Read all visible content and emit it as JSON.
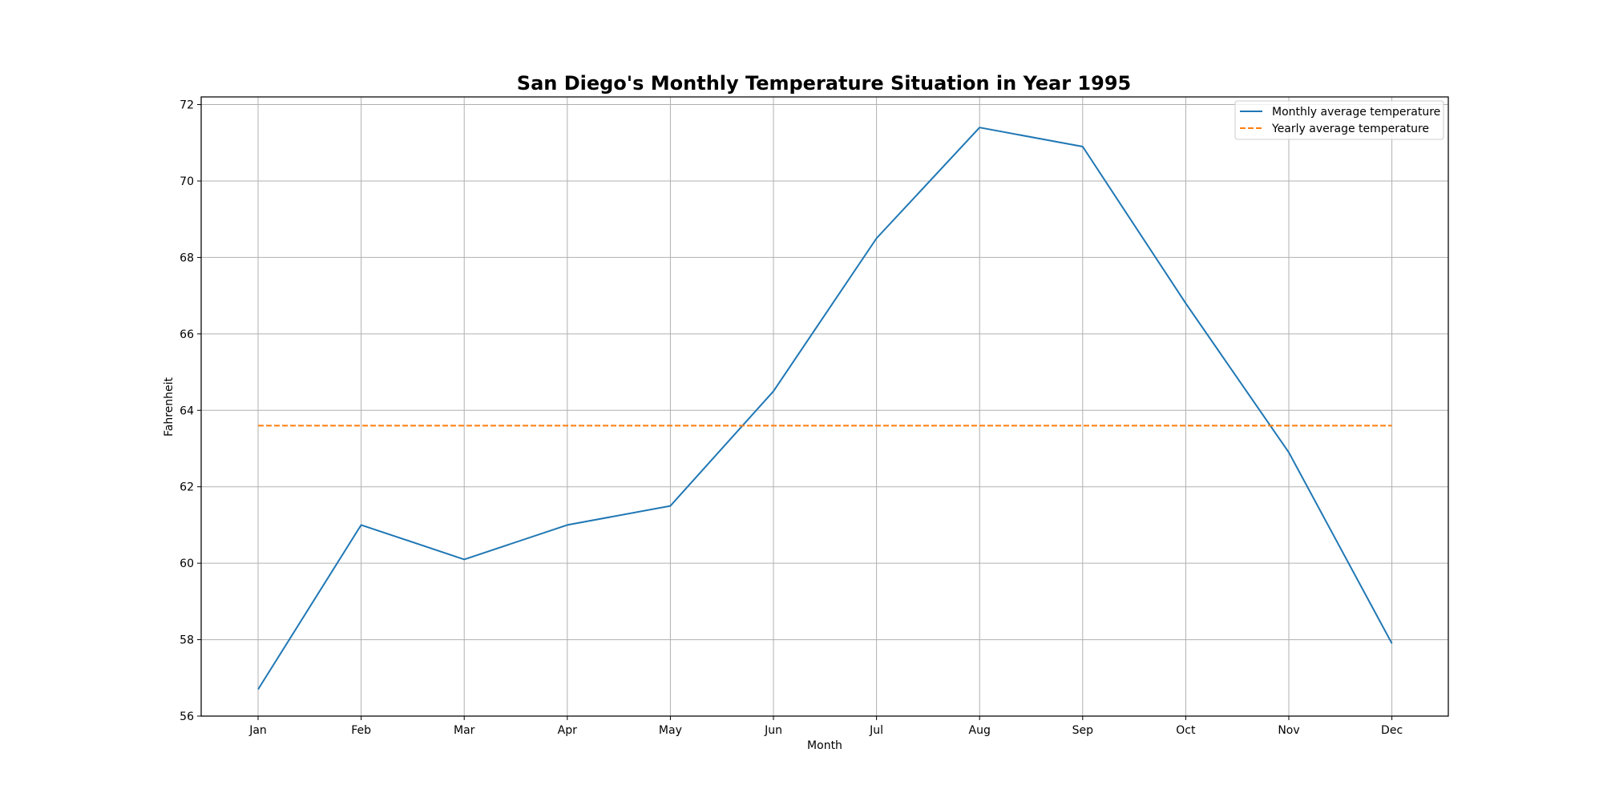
{
  "chart_data": {
    "type": "line",
    "title": "San Diego's Monthly Temperature Situation in Year 1995",
    "xlabel": "Month",
    "ylabel": "Fahrenheit",
    "categories": [
      "Jan",
      "Feb",
      "Mar",
      "Apr",
      "May",
      "Jun",
      "Jul",
      "Aug",
      "Sep",
      "Oct",
      "Nov",
      "Dec"
    ],
    "ylim": [
      56,
      72.2
    ],
    "yticks": [
      56,
      58,
      60,
      62,
      64,
      66,
      68,
      70,
      72
    ],
    "ytick_labels": [
      "56",
      "58",
      "60",
      "62",
      "64",
      "66",
      "68",
      "70",
      "72"
    ],
    "grid": true,
    "legend_position": "top-right",
    "series": [
      {
        "name": "Monthly average temperature",
        "style": "solid",
        "color": "#1f77b4",
        "values": [
          56.7,
          61.0,
          60.1,
          61.0,
          61.5,
          64.5,
          68.5,
          71.4,
          70.9,
          66.8,
          62.9,
          57.9
        ]
      },
      {
        "name": "Yearly average temperature",
        "style": "dashed",
        "color": "#ff7f0e",
        "values": [
          63.6,
          63.6,
          63.6,
          63.6,
          63.6,
          63.6,
          63.6,
          63.6,
          63.6,
          63.6,
          63.6,
          63.6
        ]
      }
    ]
  }
}
